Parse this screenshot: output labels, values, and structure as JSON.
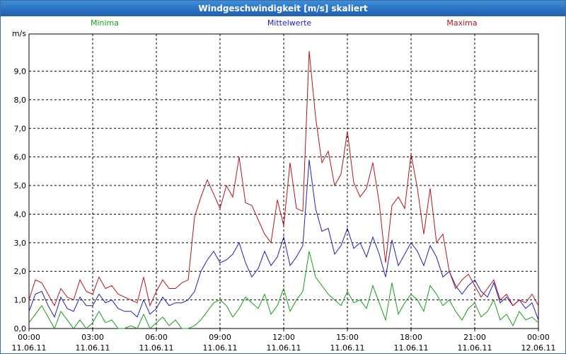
{
  "window": {
    "title": "Windgeschwindigkeit [m/s] skaliert"
  },
  "colors": {
    "minima": "#1a9e1a",
    "mittelwerte": "#1f1fb4",
    "maxima": "#b3141b"
  },
  "chart_data": {
    "type": "line",
    "title": "Windgeschwindigkeit [m/s] skaliert",
    "ylabel": "m/s",
    "ylim": [
      0,
      10.3
    ],
    "y_ticks": [
      "0,0",
      "1,0",
      "2,0",
      "3,0",
      "4,0",
      "5,0",
      "6,0",
      "7,0",
      "8,0",
      "9,0"
    ],
    "xlim_hours": [
      0,
      24
    ],
    "x_ticks": [
      {
        "time": "00:00",
        "date": "11.06.11"
      },
      {
        "time": "03:00",
        "date": "11.06.11"
      },
      {
        "time": "06:00",
        "date": "11.06.11"
      },
      {
        "time": "09:00",
        "date": "11.06.11"
      },
      {
        "time": "12:00",
        "date": "11.06.11"
      },
      {
        "time": "15:00",
        "date": "11.06.11"
      },
      {
        "time": "18:00",
        "date": "11.06.11"
      },
      {
        "time": "21:00",
        "date": "11.06.11"
      },
      {
        "time": "00:00",
        "date": "12.06.11"
      }
    ],
    "legend": [
      "Minima",
      "Mittelwerte",
      "Maxima"
    ],
    "x": [
      0,
      0.3,
      0.6,
      0.9,
      1.2,
      1.5,
      1.8,
      2.1,
      2.4,
      2.7,
      3.0,
      3.3,
      3.6,
      3.9,
      4.2,
      4.5,
      4.8,
      5.1,
      5.4,
      5.7,
      6.0,
      6.3,
      6.6,
      6.9,
      7.2,
      7.5,
      7.8,
      8.1,
      8.4,
      8.7,
      9.0,
      9.3,
      9.6,
      9.9,
      10.2,
      10.5,
      10.8,
      11.1,
      11.4,
      11.7,
      12.0,
      12.3,
      12.6,
      12.9,
      13.2,
      13.5,
      13.8,
      14.1,
      14.4,
      14.7,
      15.0,
      15.3,
      15.6,
      15.9,
      16.2,
      16.5,
      16.8,
      17.1,
      17.4,
      17.7,
      18.0,
      18.3,
      18.6,
      18.9,
      19.2,
      19.5,
      19.8,
      20.1,
      20.4,
      20.7,
      21.0,
      21.3,
      21.6,
      21.9,
      22.2,
      22.5,
      22.8,
      23.1,
      23.4,
      23.7,
      24.0
    ],
    "series": [
      {
        "name": "Minima",
        "values": [
          0.2,
          0.5,
          0.8,
          0.4,
          0.0,
          0.6,
          0.3,
          0.0,
          0.3,
          0.0,
          0.2,
          0.6,
          0.2,
          0.3,
          0.0,
          0.0,
          0.1,
          0.0,
          0.5,
          0.0,
          0.2,
          0.4,
          0.1,
          0.3,
          0.0,
          0.0,
          0.1,
          0.3,
          0.6,
          0.9,
          1.0,
          0.8,
          0.4,
          0.7,
          1.1,
          0.9,
          0.7,
          1.2,
          0.5,
          0.8,
          1.4,
          0.6,
          1.0,
          1.3,
          2.7,
          1.8,
          1.5,
          1.2,
          1.0,
          0.8,
          1.3,
          0.9,
          1.0,
          0.7,
          1.5,
          0.9,
          0.3,
          1.6,
          0.5,
          0.9,
          1.2,
          1.0,
          0.6,
          1.5,
          1.2,
          0.8,
          1.0,
          0.6,
          0.3,
          0.7,
          0.9,
          0.4,
          0.6,
          1.0,
          0.3,
          0.5,
          0.1,
          0.6,
          0.3,
          0.4,
          0.2
        ]
      },
      {
        "name": "Mittelwerte",
        "values": [
          0.6,
          1.2,
          1.3,
          0.8,
          0.4,
          1.1,
          0.7,
          0.6,
          1.1,
          0.8,
          0.8,
          1.2,
          0.9,
          1.0,
          0.7,
          0.6,
          0.6,
          0.4,
          1.0,
          0.5,
          0.7,
          1.1,
          0.8,
          0.9,
          0.9,
          1.0,
          1.3,
          2.0,
          2.4,
          2.7,
          2.3,
          2.4,
          2.6,
          3.0,
          2.3,
          1.8,
          2.1,
          2.7,
          2.2,
          2.5,
          3.2,
          2.2,
          2.5,
          2.9,
          5.9,
          4.2,
          3.4,
          3.5,
          2.6,
          2.9,
          3.5,
          2.8,
          3.0,
          2.5,
          3.2,
          2.6,
          1.8,
          3.1,
          2.2,
          2.6,
          3.0,
          2.7,
          2.2,
          2.9,
          2.5,
          1.8,
          2.0,
          1.5,
          1.2,
          1.5,
          1.7,
          1.3,
          1.1,
          1.6,
          0.9,
          1.1,
          0.8,
          1.0,
          0.7,
          0.9,
          0.3
        ]
      },
      {
        "name": "Maxima",
        "values": [
          1.0,
          1.7,
          1.6,
          1.2,
          0.8,
          1.4,
          1.1,
          1.0,
          1.7,
          1.3,
          1.2,
          1.8,
          1.4,
          1.5,
          1.2,
          1.1,
          1.0,
          0.9,
          1.8,
          0.8,
          1.3,
          1.7,
          1.4,
          1.4,
          1.6,
          1.7,
          3.9,
          4.6,
          5.2,
          4.7,
          4.2,
          5.0,
          4.6,
          6.0,
          4.4,
          4.3,
          3.8,
          3.3,
          3.0,
          4.5,
          3.6,
          5.8,
          4.2,
          4.1,
          9.7,
          7.4,
          5.8,
          6.2,
          5.0,
          5.4,
          6.9,
          5.1,
          4.6,
          4.9,
          5.8,
          4.4,
          2.3,
          4.3,
          4.6,
          4.2,
          6.1,
          4.9,
          3.3,
          4.9,
          3.0,
          3.3,
          2.0,
          1.4,
          1.7,
          1.9,
          1.5,
          1.1,
          1.4,
          1.7,
          1.0,
          1.2,
          0.8,
          1.0,
          0.9,
          1.2,
          0.8
        ]
      }
    ]
  }
}
